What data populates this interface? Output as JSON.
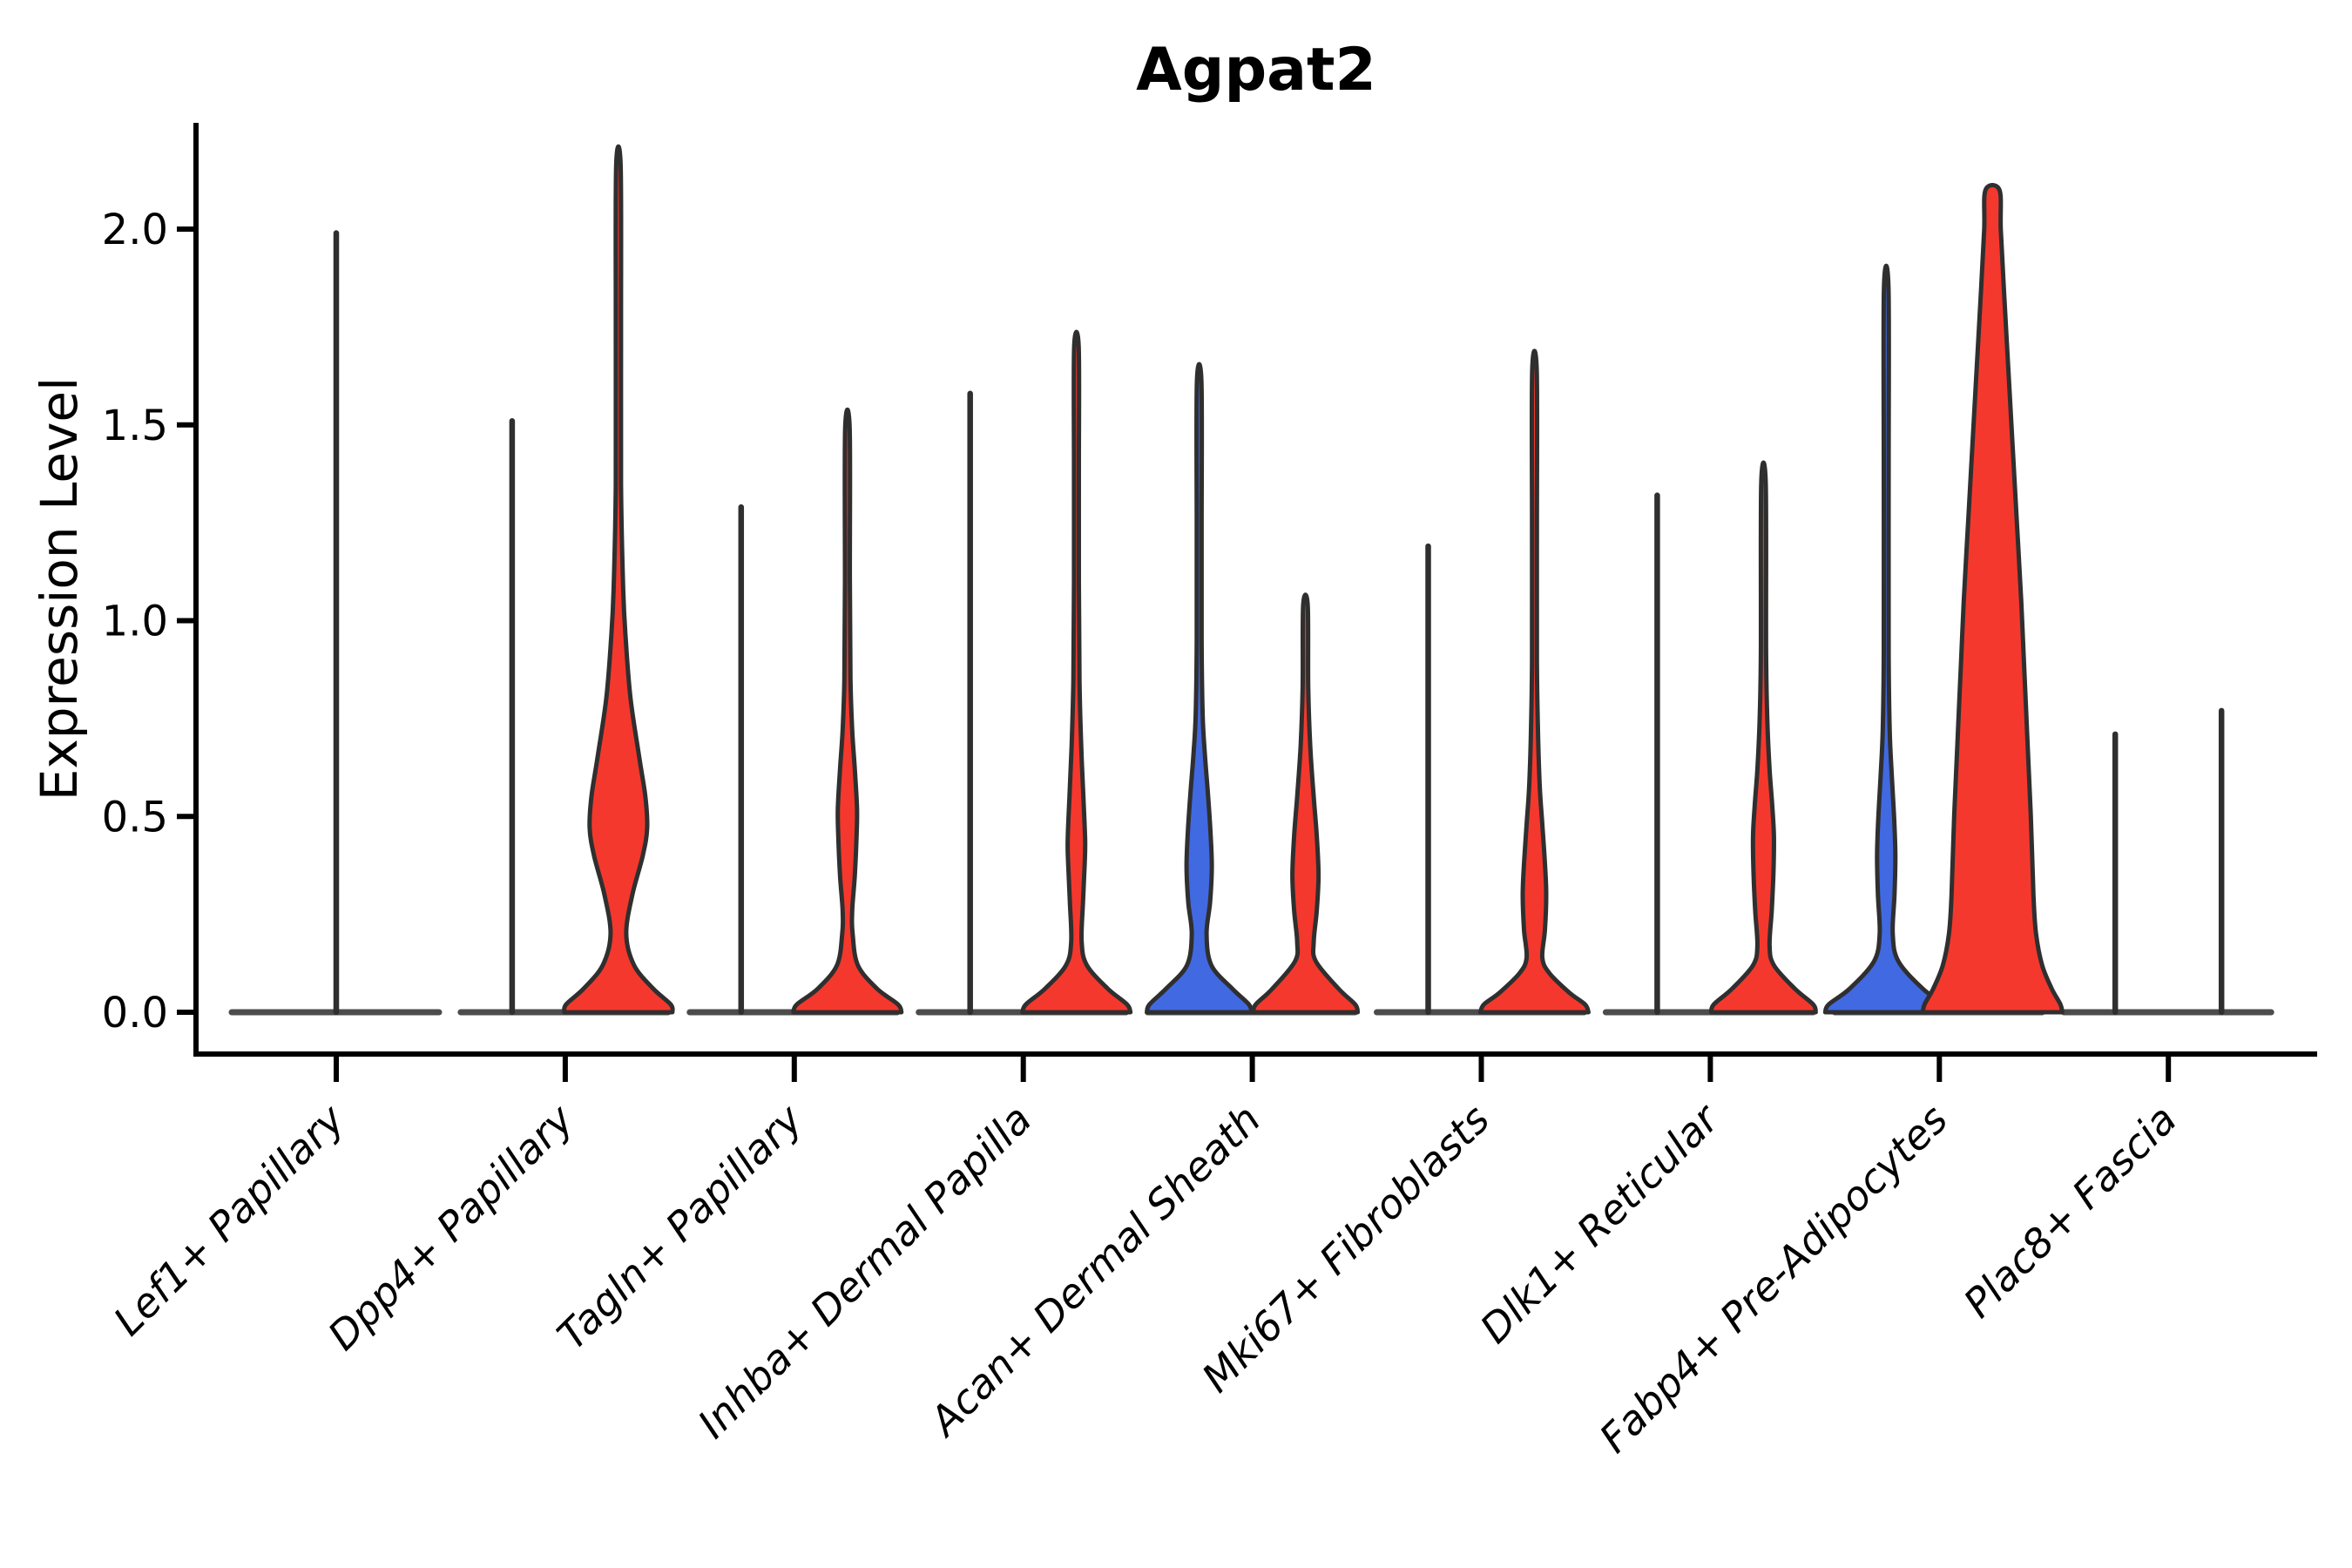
{
  "title": "Agpat2",
  "colors": {
    "background": "#FFFFFF",
    "red": "#F5382D",
    "blue": "#4169E1",
    "violin_edge": "#2F2F2F",
    "baseline": "#3D3D3D",
    "axis": "#000000"
  },
  "chart_data": {
    "type": "violin",
    "title": "Agpat2",
    "ylabel": "Expression Level",
    "xlabel": "",
    "yticks": [
      0.0,
      0.5,
      1.0,
      1.5,
      2.0
    ],
    "ylim": [
      -0.11,
      2.27
    ],
    "grid": false,
    "legend_position": "none",
    "categories": [
      "Lef1+ Papillary",
      "Dpp4+ Papillary",
      "Tagln+ Papillary",
      "Inhba+ Dermal Papilla",
      "Acan+ Dermal Sheath",
      "Mki67+ Fibroblasts",
      "Dlk1+ Reticular",
      "Fabp4+ Pre-Adipocytes",
      "Plac8+ Fascia"
    ],
    "groups": [
      "blue",
      "red"
    ],
    "violins": [
      {
        "category": "Lef1+ Papillary",
        "cat_index": 0,
        "position": "center",
        "color": null,
        "kind": "spike",
        "max_expression": 1.99
      },
      {
        "category": "Dpp4+ Papillary",
        "cat_index": 1,
        "position": "left",
        "color": null,
        "kind": "spike",
        "max_expression": 1.51
      },
      {
        "category": "Dpp4+ Papillary",
        "cat_index": 1,
        "position": "right",
        "color": "red",
        "kind": "violin",
        "max_expression": 2.16,
        "profile": [
          [
            0,
            62
          ],
          [
            0.02,
            60
          ],
          [
            0.06,
            40
          ],
          [
            0.12,
            18
          ],
          [
            0.2,
            9
          ],
          [
            0.3,
            16
          ],
          [
            0.4,
            28
          ],
          [
            0.47,
            33
          ],
          [
            0.55,
            31
          ],
          [
            0.65,
            24
          ],
          [
            0.8,
            14
          ],
          [
            0.95,
            8.5
          ],
          [
            1.08,
            5.5
          ],
          [
            1.35,
            3
          ],
          [
            1.75,
            3
          ],
          [
            2.16,
            2.6
          ]
        ]
      },
      {
        "category": "Tagln+ Papillary",
        "cat_index": 2,
        "position": "left",
        "color": null,
        "kind": "spike",
        "max_expression": 1.29
      },
      {
        "category": "Tagln+ Papillary",
        "cat_index": 2,
        "position": "right",
        "color": "red",
        "kind": "violin",
        "max_expression": 1.49,
        "profile": [
          [
            0,
            62
          ],
          [
            0.02,
            58
          ],
          [
            0.06,
            34
          ],
          [
            0.12,
            12
          ],
          [
            0.2,
            6
          ],
          [
            0.26,
            5.5
          ],
          [
            0.35,
            8.5
          ],
          [
            0.45,
            10.5
          ],
          [
            0.52,
            11
          ],
          [
            0.62,
            8.5
          ],
          [
            0.72,
            5.5
          ],
          [
            0.85,
            3.5
          ],
          [
            1.1,
            2.8
          ],
          [
            1.49,
            2.6
          ]
        ]
      },
      {
        "category": "Inhba+ Dermal Papilla",
        "cat_index": 3,
        "position": "left",
        "color": null,
        "kind": "spike",
        "max_expression": 1.58
      },
      {
        "category": "Inhba+ Dermal Papilla",
        "cat_index": 3,
        "position": "right",
        "color": "red",
        "kind": "violin",
        "max_expression": 1.7,
        "profile": [
          [
            0,
            62
          ],
          [
            0.02,
            58
          ],
          [
            0.06,
            36
          ],
          [
            0.12,
            12
          ],
          [
            0.18,
            6
          ],
          [
            0.28,
            7.5
          ],
          [
            0.38,
            9.5
          ],
          [
            0.44,
            10
          ],
          [
            0.55,
            8
          ],
          [
            0.68,
            5.5
          ],
          [
            0.85,
            3.5
          ],
          [
            1.1,
            2.8
          ],
          [
            1.4,
            2.8
          ],
          [
            1.7,
            2.6
          ]
        ]
      },
      {
        "category": "Acan+ Dermal Sheath",
        "cat_index": 4,
        "position": "left",
        "color": "blue",
        "kind": "violin",
        "max_expression": 1.61,
        "profile": [
          [
            0,
            60
          ],
          [
            0.02,
            57
          ],
          [
            0.06,
            38
          ],
          [
            0.12,
            14
          ],
          [
            0.2,
            8.5
          ],
          [
            0.28,
            12.5
          ],
          [
            0.37,
            14.5
          ],
          [
            0.46,
            13
          ],
          [
            0.56,
            10
          ],
          [
            0.66,
            6.5
          ],
          [
            0.76,
            4
          ],
          [
            0.95,
            2.8
          ],
          [
            1.25,
            2.8
          ],
          [
            1.61,
            2.6
          ]
        ]
      },
      {
        "category": "Acan+ Dermal Sheath",
        "cat_index": 4,
        "position": "right",
        "color": "red",
        "kind": "violin",
        "max_expression": 1.04,
        "profile": [
          [
            0,
            60
          ],
          [
            0.02,
            57
          ],
          [
            0.06,
            38
          ],
          [
            0.13,
            12
          ],
          [
            0.18,
            9.5
          ],
          [
            0.26,
            13
          ],
          [
            0.35,
            15
          ],
          [
            0.45,
            13
          ],
          [
            0.55,
            9.5
          ],
          [
            0.68,
            5.5
          ],
          [
            0.83,
            3.2
          ],
          [
            1.04,
            2.6
          ]
        ]
      },
      {
        "category": "Mki67+ Fibroblasts",
        "cat_index": 5,
        "position": "left",
        "color": null,
        "kind": "spike",
        "max_expression": 1.19
      },
      {
        "category": "Mki67+ Fibroblasts",
        "cat_index": 5,
        "position": "right",
        "color": "red",
        "kind": "violin",
        "max_expression": 1.64,
        "profile": [
          [
            0,
            62
          ],
          [
            0.02,
            58
          ],
          [
            0.05,
            40
          ],
          [
            0.1,
            17
          ],
          [
            0.14,
            9
          ],
          [
            0.21,
            12
          ],
          [
            0.3,
            13.5
          ],
          [
            0.38,
            12
          ],
          [
            0.48,
            9
          ],
          [
            0.58,
            6
          ],
          [
            0.72,
            4
          ],
          [
            0.9,
            2.8
          ],
          [
            1.25,
            2.8
          ],
          [
            1.64,
            2.6
          ]
        ]
      },
      {
        "category": "Dlk1+ Reticular",
        "cat_index": 6,
        "position": "left",
        "color": null,
        "kind": "spike",
        "max_expression": 1.32
      },
      {
        "category": "Dlk1+ Reticular",
        "cat_index": 6,
        "position": "right",
        "color": "red",
        "kind": "violin",
        "max_expression": 1.35,
        "profile": [
          [
            0,
            60
          ],
          [
            0.02,
            57
          ],
          [
            0.06,
            36
          ],
          [
            0.12,
            12
          ],
          [
            0.17,
            7
          ],
          [
            0.26,
            9.5
          ],
          [
            0.36,
            11.5
          ],
          [
            0.45,
            12
          ],
          [
            0.53,
            10
          ],
          [
            0.62,
            7
          ],
          [
            0.74,
            4.5
          ],
          [
            0.92,
            3
          ],
          [
            1.35,
            2.6
          ]
        ]
      },
      {
        "category": "Fabp4+ Pre-Adipocytes",
        "cat_index": 7,
        "position": "left",
        "color": "blue",
        "kind": "violin",
        "max_expression": 1.85,
        "profile": [
          [
            0,
            70
          ],
          [
            0.02,
            66
          ],
          [
            0.06,
            42
          ],
          [
            0.13,
            14
          ],
          [
            0.2,
            7.5
          ],
          [
            0.3,
            9.5
          ],
          [
            0.4,
            10.5
          ],
          [
            0.5,
            9
          ],
          [
            0.6,
            6.5
          ],
          [
            0.72,
            4
          ],
          [
            0.92,
            2.8
          ],
          [
            1.4,
            2.8
          ],
          [
            1.85,
            2.6
          ]
        ]
      },
      {
        "category": "Fabp4+ Pre-Adipocytes",
        "cat_index": 7,
        "position": "right",
        "color": "red",
        "kind": "violin",
        "max_expression": 2.1,
        "truncated_top": true,
        "profile": [
          [
            0,
            80
          ],
          [
            0.02,
            78
          ],
          [
            0.06,
            68
          ],
          [
            0.12,
            57
          ],
          [
            0.2,
            50
          ],
          [
            0.3,
            47
          ],
          [
            0.5,
            44
          ],
          [
            0.7,
            40
          ],
          [
            0.9,
            36
          ],
          [
            1.05,
            33
          ],
          [
            1.25,
            28
          ],
          [
            1.45,
            23
          ],
          [
            1.65,
            18
          ],
          [
            1.85,
            13
          ],
          [
            2.0,
            9.5
          ],
          [
            2.1,
            8
          ]
        ]
      },
      {
        "category": "Plac8+ Fascia",
        "cat_index": 8,
        "position": "left",
        "color": null,
        "kind": "spike",
        "max_expression": 0.71
      },
      {
        "category": "Plac8+ Fascia",
        "cat_index": 8,
        "position": "right",
        "color": null,
        "kind": "spike",
        "max_expression": 0.77
      }
    ]
  }
}
